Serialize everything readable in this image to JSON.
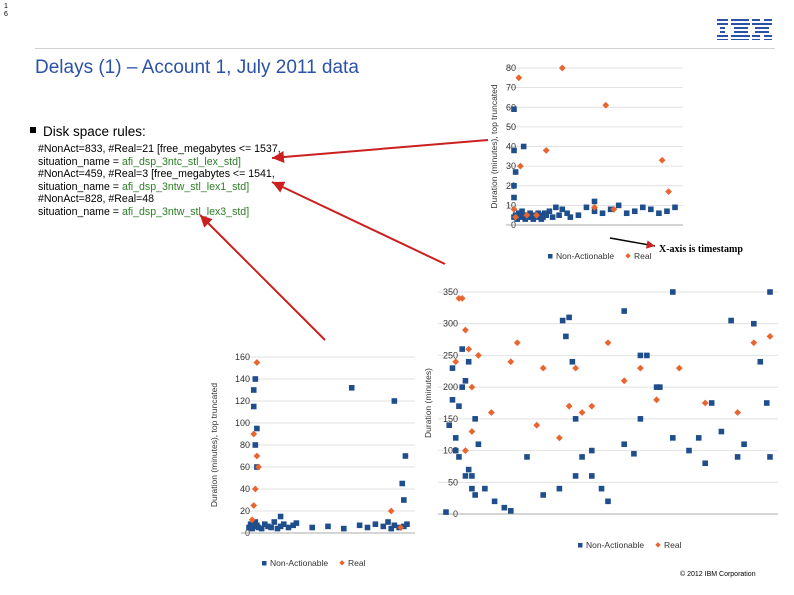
{
  "page": {
    "page_number": "1\n6",
    "title": "Delays (1) – Account 1, July 2011 data",
    "footer": "© 2012 IBM Corporation",
    "logo": "IBM",
    "colors": {
      "title": "#2b52a8",
      "non_actionable": "#1f4e8c",
      "real": "#e8652f",
      "arrow": "#cc1f1f",
      "dsp_text": "#2d7d26"
    }
  },
  "rules": {
    "bullet": "Disk space rules:",
    "r1_a": "#NonAct=833, #Real=21 [free_megabytes <= 1537,",
    "r1_b_prefix": "situation_name = ",
    "r1_b_value": "afi_dsp_3ntc_stl_lex_std]",
    "r2_a": "#NonAct=459, #Real=3 [free_megabytes <= 1541,",
    "r2_b_prefix": "situation_name = ",
    "r2_b_value": "afi_dsp_3ntw_stl_lex1_std]",
    "r3_a": "#NonAct=828, #Real=48",
    "r3_b_prefix": "situation_name = ",
    "r3_b_value": "afi_dsp_3ntw_stl_lex3_std]"
  },
  "annotation": {
    "x_axis": "X-axis is timestamp"
  },
  "chart_data": [
    {
      "type": "scatter",
      "ylabel": "Duration (minutes), top truncated",
      "ylim": [
        0,
        80
      ],
      "yticks": [
        "0",
        "10",
        "20",
        "30",
        "40",
        "50",
        "60",
        "70",
        "80"
      ],
      "legend": [
        "Non-Actionable",
        "Real"
      ],
      "legend_position": "bottom",
      "series": [
        {
          "name": "Non-Actionable",
          "x": [
            0,
            1,
            2,
            3,
            4,
            5,
            6,
            7,
            8,
            9,
            10,
            11,
            12,
            13,
            14,
            15,
            16,
            17,
            18,
            19,
            20,
            22,
            24,
            26,
            28,
            30,
            33,
            35,
            40,
            45,
            50,
            55,
            60,
            65,
            70,
            75,
            80,
            85,
            90,
            95,
            100,
            0,
            0,
            1,
            6,
            0,
            0,
            50
          ],
          "y": [
            4,
            5,
            3,
            6,
            4,
            7,
            5,
            3,
            4,
            5,
            6,
            4,
            3,
            5,
            4,
            6,
            5,
            3,
            4,
            6,
            5,
            7,
            4,
            9,
            5,
            8,
            6,
            4,
            5,
            9,
            7,
            6,
            8,
            10,
            6,
            7,
            9,
            8,
            6,
            7,
            9,
            59,
            38,
            27,
            40,
            14,
            20,
            12
          ]
        },
        {
          "name": "Real",
          "x": [
            1,
            4,
            8,
            14,
            20,
            30,
            50,
            57,
            62,
            92,
            96,
            3,
            0
          ],
          "y": [
            4,
            30,
            5,
            5,
            38,
            80,
            9,
            61,
            8,
            33,
            17,
            75,
            8
          ]
        }
      ]
    },
    {
      "type": "scatter",
      "ylabel": "Duration (minutes), top truncated",
      "ylim": [
        0,
        160
      ],
      "yticks": [
        "0",
        "20",
        "40",
        "60",
        "80",
        "100",
        "120",
        "140",
        "160"
      ],
      "legend": [
        "Non-Actionable",
        "Real"
      ],
      "legend_position": "bottom",
      "series": [
        {
          "name": "Non-Actionable",
          "x": [
            0,
            1,
            2,
            3,
            4,
            5,
            6,
            8,
            10,
            12,
            14,
            16,
            18,
            20,
            22,
            25,
            28,
            30,
            40,
            50,
            60,
            70,
            75,
            80,
            85,
            88,
            90,
            92,
            95,
            98,
            100,
            3,
            3,
            4,
            5,
            5,
            4,
            20,
            65,
            92,
            97,
            98,
            99
          ],
          "y": [
            5,
            8,
            4,
            6,
            10,
            7,
            5,
            4,
            8,
            6,
            5,
            10,
            4,
            6,
            8,
            5,
            7,
            9,
            5,
            6,
            4,
            7,
            5,
            8,
            6,
            10,
            4,
            7,
            5,
            6,
            8,
            130,
            115,
            140,
            60,
            95,
            80,
            15,
            132,
            120,
            45,
            30,
            70
          ]
        },
        {
          "name": "Real",
          "x": [
            5,
            6,
            3,
            4,
            5,
            2,
            90,
            96,
            3
          ],
          "y": [
            155,
            60,
            25,
            40,
            70,
            12,
            20,
            5,
            90
          ]
        }
      ]
    },
    {
      "type": "scatter",
      "ylabel": "Duration (minutes)",
      "ylim": [
        0,
        350
      ],
      "yticks": [
        "0",
        "50",
        "100",
        "150",
        "200",
        "250",
        "300",
        "350"
      ],
      "legend": [
        "Non-Actionable",
        "Real"
      ],
      "legend_position": "bottom",
      "series": [
        {
          "name": "Non-Actionable",
          "x": [
            0,
            1,
            2,
            3,
            4,
            5,
            6,
            7,
            8,
            9,
            10,
            12,
            15,
            18,
            20,
            25,
            30,
            35,
            40,
            45,
            50,
            55,
            60,
            65,
            70,
            75,
            80,
            85,
            90,
            95,
            100,
            2,
            4,
            6,
            8,
            3,
            5,
            7,
            9,
            36,
            38,
            40,
            42,
            45,
            48,
            55,
            58,
            60,
            62,
            66,
            70,
            78,
            82,
            88,
            92,
            97,
            99,
            100,
            37,
            39
          ],
          "y": [
            3,
            140,
            180,
            120,
            90,
            260,
            210,
            240,
            60,
            150,
            110,
            40,
            20,
            10,
            5,
            90,
            30,
            40,
            60,
            100,
            20,
            320,
            250,
            200,
            120,
            100,
            80,
            130,
            90,
            300,
            350,
            230,
            170,
            60,
            40,
            100,
            200,
            70,
            30,
            305,
            310,
            150,
            90,
            60,
            40,
            110,
            95,
            150,
            250,
            200,
            360,
            120,
            175,
            305,
            110,
            240,
            175,
            90,
            280,
            240
          ],
          "x_note": "timestamp index"
        },
        {
          "name": "Real",
          "x": [
            4,
            5,
            6,
            7,
            8,
            3,
            10,
            14,
            20,
            22,
            28,
            30,
            40,
            45,
            50,
            55,
            60,
            65,
            72,
            80,
            90,
            95,
            100,
            6,
            8,
            38,
            42,
            35
          ],
          "y": [
            340,
            340,
            290,
            260,
            200,
            240,
            250,
            160,
            240,
            270,
            140,
            230,
            230,
            170,
            270,
            210,
            230,
            180,
            230,
            175,
            160,
            270,
            280,
            100,
            130,
            170,
            160,
            120
          ]
        }
      ]
    }
  ]
}
